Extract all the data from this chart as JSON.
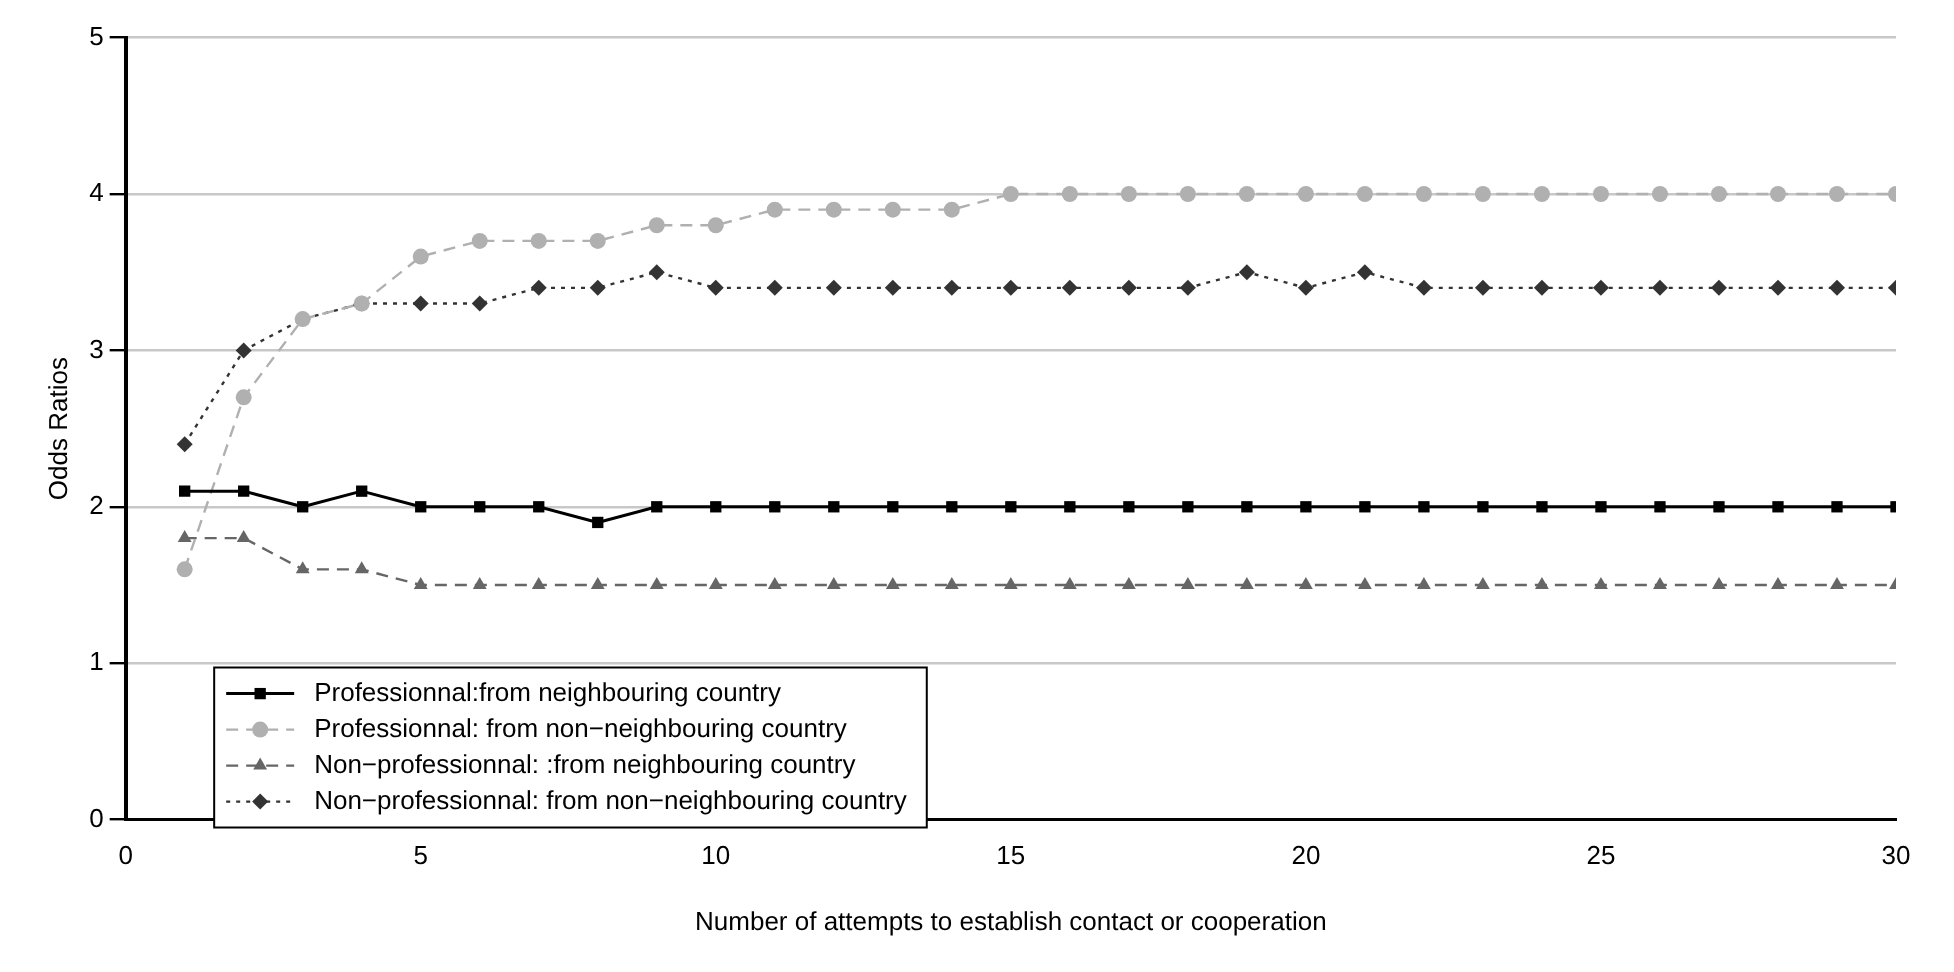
{
  "chart_data": {
    "type": "line",
    "xlabel": "Number of attempts to establish contact or cooperation",
    "ylabel": "Odds Ratios",
    "x": [
      1,
      2,
      3,
      4,
      5,
      6,
      7,
      8,
      9,
      10,
      11,
      12,
      13,
      14,
      15,
      16,
      17,
      18,
      19,
      20,
      21,
      22,
      23,
      24,
      25,
      26,
      27,
      28,
      29,
      30
    ],
    "xlim": [
      0,
      30
    ],
    "xticks": [
      0,
      5,
      10,
      15,
      20,
      25,
      30
    ],
    "ylim": [
      0,
      5
    ],
    "yticks": [
      0,
      1,
      2,
      3,
      4,
      5
    ],
    "grid": "y",
    "legend": "bottom left",
    "series": [
      {
        "name": "Professionnal:from neighbouring country",
        "color": "#000000",
        "marker": "square",
        "line_style": "solid",
        "values": [
          2.1,
          2.1,
          2.0,
          2.1,
          2.0,
          2.0,
          2.0,
          1.9,
          2.0,
          2.0,
          2.0,
          2.0,
          2.0,
          2.0,
          2.0,
          2.0,
          2.0,
          2.0,
          2.0,
          2.0,
          2.0,
          2.0,
          2.0,
          2.0,
          2.0,
          2.0,
          2.0,
          2.0,
          2.0,
          2.0
        ]
      },
      {
        "name": "Professionnal: from non−neighbouring country",
        "color": "#b0b0b0",
        "marker": "circle",
        "line_style": "dashed",
        "values": [
          1.6,
          2.7,
          3.2,
          3.3,
          3.6,
          3.7,
          3.7,
          3.7,
          3.8,
          3.8,
          3.9,
          3.9,
          3.9,
          3.9,
          4.0,
          4.0,
          4.0,
          4.0,
          4.0,
          4.0,
          4.0,
          4.0,
          4.0,
          4.0,
          4.0,
          4.0,
          4.0,
          4.0,
          4.0,
          4.0
        ]
      },
      {
        "name": "Non−professionnal: :from neighbouring country",
        "color": "#666666",
        "marker": "triangle",
        "line_style": "dashed",
        "values": [
          1.8,
          1.8,
          1.6,
          1.6,
          1.5,
          1.5,
          1.5,
          1.5,
          1.5,
          1.5,
          1.5,
          1.5,
          1.5,
          1.5,
          1.5,
          1.5,
          1.5,
          1.5,
          1.5,
          1.5,
          1.5,
          1.5,
          1.5,
          1.5,
          1.5,
          1.5,
          1.5,
          1.5,
          1.5,
          1.5
        ]
      },
      {
        "name": "Non−professionnal: from non−neighbouring country",
        "color": "#333333",
        "marker": "diamond",
        "line_style": "dotted",
        "values": [
          2.4,
          3.0,
          3.2,
          3.3,
          3.3,
          3.3,
          3.4,
          3.4,
          3.5,
          3.4,
          3.4,
          3.4,
          3.4,
          3.4,
          3.4,
          3.4,
          3.4,
          3.4,
          3.5,
          3.4,
          3.5,
          3.4,
          3.4,
          3.4,
          3.4,
          3.4,
          3.4,
          3.4,
          3.4,
          3.4
        ]
      }
    ]
  }
}
